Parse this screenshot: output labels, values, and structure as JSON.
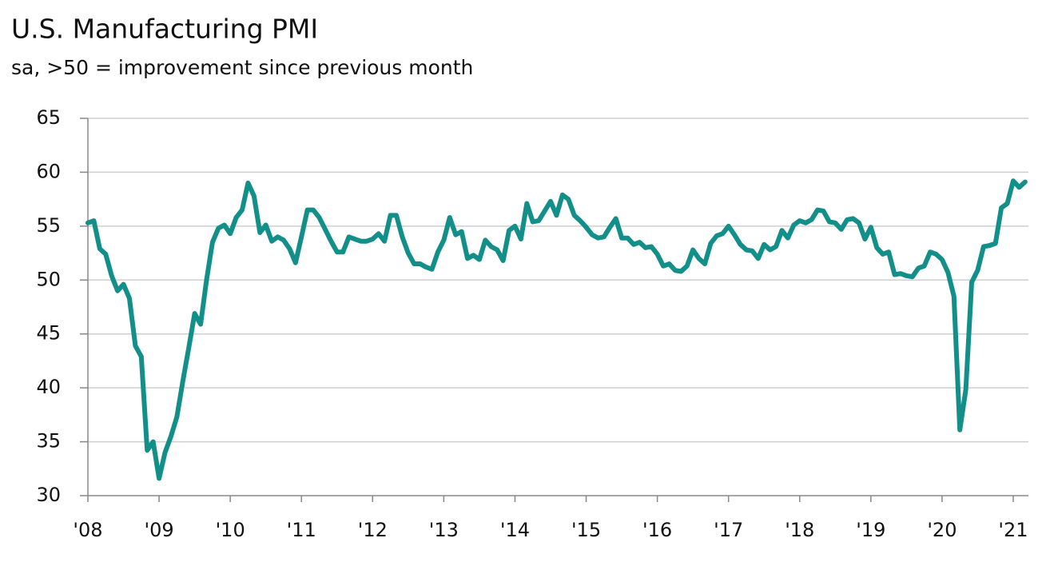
{
  "chart_data": {
    "type": "line",
    "title": "U.S. Manufacturing PMI",
    "subtitle": "sa, >50 = improvement since previous month",
    "categories": [
      "'08",
      null,
      null,
      null,
      null,
      null,
      null,
      null,
      null,
      null,
      null,
      null,
      "'09",
      null,
      null,
      null,
      null,
      null,
      null,
      null,
      null,
      null,
      null,
      null,
      "'10",
      null,
      null,
      null,
      null,
      null,
      null,
      null,
      null,
      null,
      null,
      null,
      "'11",
      null,
      null,
      null,
      null,
      null,
      null,
      null,
      null,
      null,
      null,
      null,
      "'12",
      null,
      null,
      null,
      null,
      null,
      null,
      null,
      null,
      null,
      null,
      null,
      "'13",
      null,
      null,
      null,
      null,
      null,
      null,
      null,
      null,
      null,
      null,
      null,
      "'14",
      null,
      null,
      null,
      null,
      null,
      null,
      null,
      null,
      null,
      null,
      null,
      "'15",
      null,
      null,
      null,
      null,
      null,
      null,
      null,
      null,
      null,
      null,
      null,
      "'16",
      null,
      null,
      null,
      null,
      null,
      null,
      null,
      null,
      null,
      null,
      null,
      "'17",
      null,
      null,
      null,
      null,
      null,
      null,
      null,
      null,
      null,
      null,
      null,
      "'18",
      null,
      null,
      null,
      null,
      null,
      null,
      null,
      null,
      null,
      null,
      null,
      "'19",
      null,
      null,
      null,
      null,
      null,
      null,
      null,
      null,
      null,
      null,
      null,
      "'20",
      null,
      null,
      null,
      null,
      null,
      null,
      null,
      null,
      null,
      null,
      null,
      "'21",
      null,
      null
    ],
    "values": [
      55.3,
      55.5,
      52.9,
      52.4,
      50.4,
      49.0,
      49.6,
      48.3,
      43.9,
      42.9,
      34.2,
      35.0,
      31.6,
      34.0,
      35.5,
      37.3,
      40.6,
      43.7,
      46.9,
      45.9,
      50.0,
      53.5,
      54.8,
      55.1,
      54.3,
      55.8,
      56.5,
      59.0,
      57.8,
      54.4,
      55.1,
      53.6,
      54.0,
      53.7,
      52.9,
      51.6,
      54.0,
      56.5,
      56.5,
      55.8,
      54.7,
      53.6,
      52.6,
      52.6,
      54.0,
      53.8,
      53.6,
      53.6,
      53.8,
      54.3,
      53.6,
      56.0,
      56.0,
      54.0,
      52.5,
      51.5,
      51.5,
      51.2,
      51.0,
      52.6,
      53.7,
      55.8,
      54.2,
      54.5,
      52.0,
      52.3,
      51.9,
      53.7,
      53.1,
      52.8,
      51.8,
      54.6,
      55.0,
      53.8,
      57.1,
      55.4,
      55.5,
      56.4,
      57.3,
      56.0,
      57.9,
      57.5,
      56.0,
      55.5,
      54.9,
      54.2,
      53.9,
      54.0,
      54.9,
      55.7,
      53.9,
      53.9,
      53.3,
      53.5,
      53.0,
      53.1,
      52.4,
      51.3,
      51.5,
      50.9,
      50.8,
      51.3,
      52.8,
      52.0,
      51.5,
      53.4,
      54.1,
      54.3,
      55.0,
      54.2,
      53.3,
      52.8,
      52.7,
      52.0,
      53.3,
      52.8,
      53.1,
      54.6,
      53.9,
      55.1,
      55.5,
      55.3,
      55.6,
      56.5,
      56.4,
      55.4,
      55.3,
      54.7,
      55.6,
      55.7,
      55.3,
      53.8,
      54.9,
      53.0,
      52.4,
      52.6,
      50.5,
      50.6,
      50.4,
      50.3,
      51.1,
      51.3,
      52.6,
      52.4,
      51.9,
      50.7,
      48.5,
      36.1,
      39.8,
      49.8,
      50.9,
      53.1,
      53.2,
      53.4,
      56.7,
      57.1,
      59.2,
      58.6,
      59.1
    ],
    "color": "#138f8a",
    "ylim": [
      30,
      65
    ],
    "yticks": [
      30,
      35,
      40,
      45,
      50,
      55,
      60,
      65
    ],
    "grid": true
  }
}
